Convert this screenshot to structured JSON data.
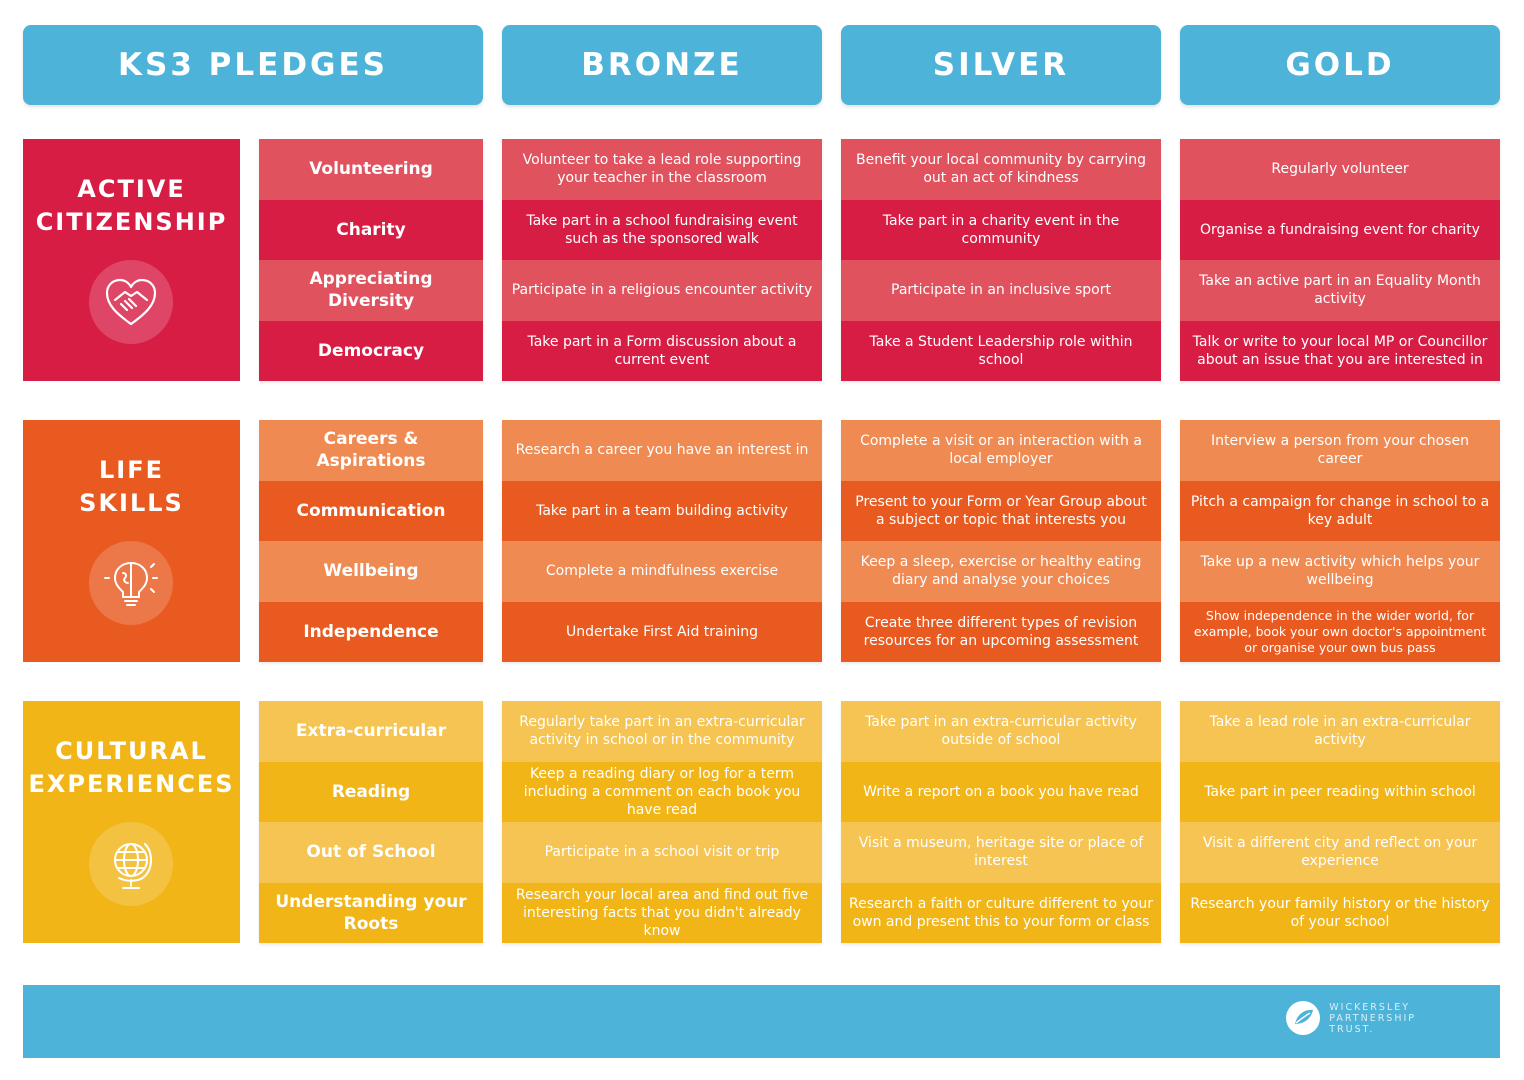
{
  "headers": {
    "pledges": "KS3 PLEDGES",
    "bronze": "BRONZE",
    "silver": "SILVER",
    "gold": "GOLD"
  },
  "sections": [
    {
      "title_line1": "ACTIVE",
      "title_line2": "CITIZENSHIP",
      "icon": "handshake-heart-icon",
      "color_dark": "#d81d45",
      "color_light": "#e0525e",
      "categories": [
        "Volunteering",
        "Charity",
        "Appreciating Diversity",
        "Democracy"
      ],
      "bronze": [
        "Volunteer to take a lead role supporting your teacher in the classroom",
        "Take part in a school fundraising event such as the sponsored walk",
        "Participate in a religious encounter activity",
        "Take part in a Form discussion about a current event"
      ],
      "silver": [
        "Benefit your local community by carrying out an act of kindness",
        "Take part in a charity event in the community",
        "Participate in an inclusive sport",
        "Take a Student Leadership role within school"
      ],
      "gold": [
        "Regularly volunteer",
        "Organise a fundraising event for charity",
        "Take an active part in an Equality Month activity",
        "Talk or write to your local MP or Councillor about an issue that you are interested in"
      ]
    },
    {
      "title_line1": "LIFE",
      "title_line2": "SKILLS",
      "icon": "brain-lightbulb-icon",
      "color_dark": "#e85a20",
      "color_light": "#f08a53",
      "categories": [
        "Careers & Aspirations",
        "Communication",
        "Wellbeing",
        "Independence"
      ],
      "bronze": [
        "Research a career you have an interest in",
        "Take part in a team building activity",
        "Complete a mindfulness exercise",
        "Undertake First Aid training"
      ],
      "silver": [
        "Complete a visit or an interaction with a local employer",
        "Present to your Form or Year Group about a subject or topic that interests you",
        "Keep a sleep, exercise or healthy eating diary and analyse your choices",
        "Create three different types of revision resources for an upcoming assessment"
      ],
      "gold": [
        "Interview a person from your chosen career",
        "Pitch a campaign for change in school to a key adult",
        "Take up a new activity which helps your wellbeing",
        "Show independence in the wider world, for example, book your own doctor's appointment or organise your own bus pass"
      ]
    },
    {
      "title_line1": "CULTURAL",
      "title_line2": "EXPERIENCES",
      "icon": "globe-icon",
      "color_dark": "#f1b518",
      "color_light": "#f6c452",
      "categories": [
        "Extra-curricular",
        "Reading",
        "Out of School",
        "Understanding your Roots"
      ],
      "bronze": [
        "Regularly take part in an extra-curricular activity in school or in the community",
        "Keep a reading diary or log for a term including a comment on each book you have read",
        "Participate in a school visit or trip",
        "Research your local area and find out five interesting facts that you didn't already know"
      ],
      "silver": [
        "Take part in an extra-curricular activity outside of school",
        "Write a report on a book you have read",
        "Visit a museum, heritage site or place of interest",
        "Research a faith or culture different to your own and present this to your form or class"
      ],
      "gold": [
        "Take a lead role in an extra-curricular activity",
        "Take part in peer reading within school",
        "Visit a different city and reflect on your experience",
        "Research your family history or the history of your school"
      ]
    }
  ],
  "footer": {
    "logo_line1": "WICKERSLEY",
    "logo_line2": "PARTNERSHIP",
    "logo_line3": "TRUST.",
    "color": "#4db3d9"
  }
}
